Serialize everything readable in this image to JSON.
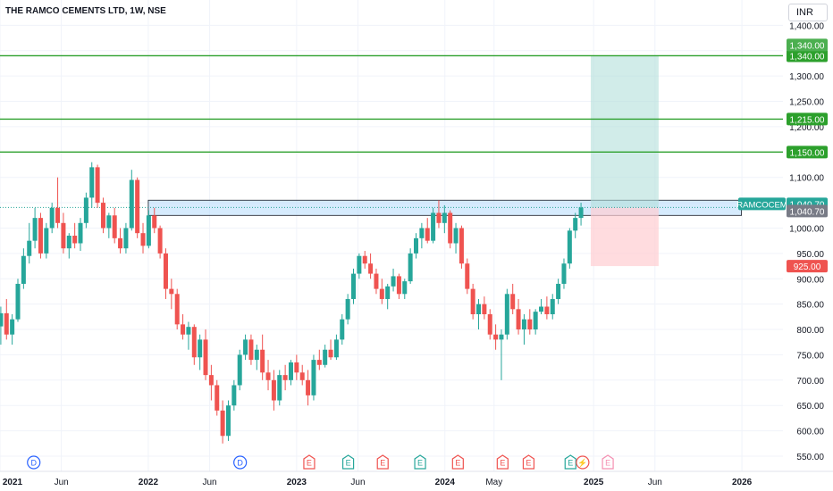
{
  "header": {
    "title": "THE RAMCO CEMENTS LTD, 1W, NSE",
    "currency": "INR"
  },
  "colors": {
    "up": "#26a69a",
    "down": "#ef5350",
    "level": "#2ca02c",
    "zone": "#bbdefb",
    "target": "#b2dfdb",
    "stop": "#ffcdd2"
  },
  "chart_data": {
    "type": "candlestick",
    "symbol": "RAMCOCEM",
    "interval": "1W",
    "x_range": [
      "2021-01-01",
      "2026-04-12"
    ],
    "x_ticks": [
      {
        "date": "2021-01-01",
        "label": "2021",
        "bold": true
      },
      {
        "date": "2021-06-01",
        "label": "Jun",
        "bold": false
      },
      {
        "date": "2022-01-01",
        "label": "2022",
        "bold": true
      },
      {
        "date": "2022-06-01",
        "label": "Jun",
        "bold": false
      },
      {
        "date": "2023-01-01",
        "label": "2023",
        "bold": true
      },
      {
        "date": "2023-06-01",
        "label": "Jun",
        "bold": false
      },
      {
        "date": "2024-01-01",
        "label": "2024",
        "bold": true
      },
      {
        "date": "2024-05-01",
        "label": "May",
        "bold": false
      },
      {
        "date": "2025-01-01",
        "label": "2025",
        "bold": true
      },
      {
        "date": "2025-06-01",
        "label": "Jun",
        "bold": false
      },
      {
        "date": "2026-01-01",
        "label": "2026",
        "bold": true
      }
    ],
    "y_range": [
      520,
      1450
    ],
    "y_ticks": [
      {
        "value": 550,
        "label": "550.00"
      },
      {
        "value": 600,
        "label": "600.00"
      },
      {
        "value": 650,
        "label": "650.00"
      },
      {
        "value": 700,
        "label": "700.00"
      },
      {
        "value": 750,
        "label": "750.00"
      },
      {
        "value": 800,
        "label": "800.00"
      },
      {
        "value": 850,
        "label": "850.00"
      },
      {
        "value": 900,
        "label": "900.00"
      },
      {
        "value": 950,
        "label": "950.00"
      },
      {
        "value": 1000,
        "label": "1,000.00"
      },
      {
        "value": 1050,
        "label": "1,050.00"
      },
      {
        "value": 1100,
        "label": "1,100.00"
      },
      {
        "value": 1150,
        "label": "1,150.00"
      },
      {
        "value": 1200,
        "label": "1,200.00"
      },
      {
        "value": 1250,
        "label": "1,250.00"
      },
      {
        "value": 1300,
        "label": "1,300.00"
      },
      {
        "value": 1350,
        "label": "1,350.00"
      },
      {
        "value": 1400,
        "label": "1,400.00"
      }
    ],
    "last_price": 1040.7,
    "last_price_label": "1,040.70",
    "price_tag": "RAMCOCEM",
    "horizontal_levels": [
      {
        "value": 1340,
        "label": "1,340.00"
      },
      {
        "value": 1215,
        "label": "1,215.00"
      },
      {
        "value": 1150,
        "label": "1,150.00"
      }
    ],
    "resistance_zone": {
      "from": "2022-01-01",
      "to": "2025-12-31",
      "top": 1055,
      "bottom": 1025
    },
    "position": {
      "from": "2024-12-25",
      "to": "2025-06-10",
      "entry": 1040.7,
      "target": 1340,
      "stop": 925,
      "target_label": "1,340.00",
      "stop_label": "925.00"
    },
    "event_markers": [
      {
        "date": "2021-03-25",
        "kind": "D",
        "label": "D"
      },
      {
        "date": "2022-08-15",
        "kind": "D",
        "label": "D"
      },
      {
        "date": "2023-02-01",
        "kind": "E",
        "label": "E"
      },
      {
        "date": "2023-05-08",
        "kind": "E",
        "label": "E"
      },
      {
        "date": "2023-08-01",
        "kind": "E",
        "label": "E"
      },
      {
        "date": "2023-11-01",
        "kind": "E",
        "label": "E"
      },
      {
        "date": "2024-02-02",
        "kind": "E",
        "label": "E"
      },
      {
        "date": "2024-05-22",
        "kind": "E",
        "label": "E"
      },
      {
        "date": "2024-07-25",
        "kind": "E",
        "label": "E"
      },
      {
        "date": "2024-11-05",
        "kind": "E",
        "label": "E"
      },
      {
        "date": "2024-12-05",
        "kind": "F",
        "label": "⚡"
      },
      {
        "date": "2025-02-05",
        "kind": "E_future",
        "label": "E"
      }
    ],
    "candles": [
      {
        "t": "2021-01-03",
        "o": 806,
        "h": 845,
        "l": 770,
        "c": 832
      },
      {
        "t": "2021-01-17",
        "o": 832,
        "h": 860,
        "l": 780,
        "c": 790
      },
      {
        "t": "2021-01-31",
        "o": 790,
        "h": 830,
        "l": 770,
        "c": 820
      },
      {
        "t": "2021-02-14",
        "o": 820,
        "h": 900,
        "l": 815,
        "c": 890
      },
      {
        "t": "2021-02-28",
        "o": 890,
        "h": 960,
        "l": 880,
        "c": 945
      },
      {
        "t": "2021-03-14",
        "o": 945,
        "h": 1010,
        "l": 930,
        "c": 975
      },
      {
        "t": "2021-03-28",
        "o": 975,
        "h": 1040,
        "l": 960,
        "c": 1020
      },
      {
        "t": "2021-04-11",
        "o": 1020,
        "h": 1030,
        "l": 940,
        "c": 950
      },
      {
        "t": "2021-04-25",
        "o": 950,
        "h": 1010,
        "l": 940,
        "c": 1000
      },
      {
        "t": "2021-05-09",
        "o": 1000,
        "h": 1050,
        "l": 990,
        "c": 1040
      },
      {
        "t": "2021-05-23",
        "o": 1040,
        "h": 1100,
        "l": 1000,
        "c": 1010
      },
      {
        "t": "2021-06-06",
        "o": 1010,
        "h": 1030,
        "l": 950,
        "c": 960
      },
      {
        "t": "2021-06-20",
        "o": 960,
        "h": 990,
        "l": 940,
        "c": 985
      },
      {
        "t": "2021-07-04",
        "o": 985,
        "h": 1010,
        "l": 960,
        "c": 970
      },
      {
        "t": "2021-07-18",
        "o": 970,
        "h": 1020,
        "l": 955,
        "c": 1010
      },
      {
        "t": "2021-08-01",
        "o": 1010,
        "h": 1070,
        "l": 1000,
        "c": 1060
      },
      {
        "t": "2021-08-15",
        "o": 1060,
        "h": 1130,
        "l": 1040,
        "c": 1120
      },
      {
        "t": "2021-08-29",
        "o": 1120,
        "h": 1125,
        "l": 1040,
        "c": 1050
      },
      {
        "t": "2021-09-12",
        "o": 1050,
        "h": 1060,
        "l": 990,
        "c": 1000
      },
      {
        "t": "2021-09-26",
        "o": 1000,
        "h": 1030,
        "l": 980,
        "c": 1025
      },
      {
        "t": "2021-10-10",
        "o": 1025,
        "h": 1040,
        "l": 970,
        "c": 980
      },
      {
        "t": "2021-10-24",
        "o": 980,
        "h": 1000,
        "l": 950,
        "c": 960
      },
      {
        "t": "2021-11-07",
        "o": 960,
        "h": 1010,
        "l": 950,
        "c": 1000
      },
      {
        "t": "2021-11-21",
        "o": 1000,
        "h": 1115,
        "l": 995,
        "c": 1095
      },
      {
        "t": "2021-12-05",
        "o": 1095,
        "h": 1100,
        "l": 980,
        "c": 990
      },
      {
        "t": "2021-12-19",
        "o": 990,
        "h": 1010,
        "l": 950,
        "c": 965
      },
      {
        "t": "2022-01-02",
        "o": 965,
        "h": 1035,
        "l": 960,
        "c": 1025
      },
      {
        "t": "2022-01-16",
        "o": 1025,
        "h": 1040,
        "l": 990,
        "c": 1000
      },
      {
        "t": "2022-01-30",
        "o": 1000,
        "h": 1005,
        "l": 940,
        "c": 950
      },
      {
        "t": "2022-02-13",
        "o": 950,
        "h": 960,
        "l": 860,
        "c": 880
      },
      {
        "t": "2022-02-27",
        "o": 880,
        "h": 900,
        "l": 840,
        "c": 870
      },
      {
        "t": "2022-03-13",
        "o": 870,
        "h": 880,
        "l": 800,
        "c": 810
      },
      {
        "t": "2022-03-27",
        "o": 810,
        "h": 830,
        "l": 780,
        "c": 790
      },
      {
        "t": "2022-04-10",
        "o": 790,
        "h": 815,
        "l": 760,
        "c": 805
      },
      {
        "t": "2022-04-24",
        "o": 805,
        "h": 810,
        "l": 730,
        "c": 745
      },
      {
        "t": "2022-05-08",
        "o": 745,
        "h": 790,
        "l": 720,
        "c": 780
      },
      {
        "t": "2022-05-22",
        "o": 780,
        "h": 800,
        "l": 700,
        "c": 710
      },
      {
        "t": "2022-06-05",
        "o": 710,
        "h": 730,
        "l": 660,
        "c": 690
      },
      {
        "t": "2022-06-19",
        "o": 690,
        "h": 700,
        "l": 630,
        "c": 640
      },
      {
        "t": "2022-07-03",
        "o": 640,
        "h": 660,
        "l": 575,
        "c": 590
      },
      {
        "t": "2022-07-17",
        "o": 590,
        "h": 660,
        "l": 580,
        "c": 650
      },
      {
        "t": "2022-07-31",
        "o": 650,
        "h": 700,
        "l": 640,
        "c": 690
      },
      {
        "t": "2022-08-14",
        "o": 690,
        "h": 760,
        "l": 680,
        "c": 750
      },
      {
        "t": "2022-08-28",
        "o": 750,
        "h": 790,
        "l": 740,
        "c": 780
      },
      {
        "t": "2022-09-11",
        "o": 780,
        "h": 790,
        "l": 730,
        "c": 740
      },
      {
        "t": "2022-09-25",
        "o": 740,
        "h": 770,
        "l": 720,
        "c": 760
      },
      {
        "t": "2022-10-09",
        "o": 760,
        "h": 790,
        "l": 700,
        "c": 715
      },
      {
        "t": "2022-10-23",
        "o": 715,
        "h": 740,
        "l": 680,
        "c": 700
      },
      {
        "t": "2022-11-06",
        "o": 700,
        "h": 720,
        "l": 640,
        "c": 660
      },
      {
        "t": "2022-11-20",
        "o": 660,
        "h": 720,
        "l": 650,
        "c": 710
      },
      {
        "t": "2022-12-04",
        "o": 710,
        "h": 730,
        "l": 680,
        "c": 700
      },
      {
        "t": "2022-12-18",
        "o": 700,
        "h": 740,
        "l": 690,
        "c": 735
      },
      {
        "t": "2023-01-01",
        "o": 735,
        "h": 750,
        "l": 700,
        "c": 715
      },
      {
        "t": "2023-01-15",
        "o": 715,
        "h": 730,
        "l": 690,
        "c": 700
      },
      {
        "t": "2023-01-29",
        "o": 700,
        "h": 720,
        "l": 650,
        "c": 670
      },
      {
        "t": "2023-02-12",
        "o": 670,
        "h": 750,
        "l": 660,
        "c": 740
      },
      {
        "t": "2023-02-26",
        "o": 740,
        "h": 760,
        "l": 720,
        "c": 730
      },
      {
        "t": "2023-03-12",
        "o": 730,
        "h": 770,
        "l": 725,
        "c": 760
      },
      {
        "t": "2023-03-26",
        "o": 760,
        "h": 780,
        "l": 740,
        "c": 745
      },
      {
        "t": "2023-04-09",
        "o": 745,
        "h": 790,
        "l": 740,
        "c": 780
      },
      {
        "t": "2023-04-23",
        "o": 780,
        "h": 830,
        "l": 770,
        "c": 820
      },
      {
        "t": "2023-05-07",
        "o": 820,
        "h": 870,
        "l": 810,
        "c": 860
      },
      {
        "t": "2023-05-21",
        "o": 860,
        "h": 920,
        "l": 850,
        "c": 910
      },
      {
        "t": "2023-06-04",
        "o": 910,
        "h": 950,
        "l": 900,
        "c": 945
      },
      {
        "t": "2023-06-18",
        "o": 945,
        "h": 955,
        "l": 920,
        "c": 930
      },
      {
        "t": "2023-07-02",
        "o": 930,
        "h": 950,
        "l": 900,
        "c": 910
      },
      {
        "t": "2023-07-16",
        "o": 910,
        "h": 920,
        "l": 870,
        "c": 880
      },
      {
        "t": "2023-07-30",
        "o": 880,
        "h": 900,
        "l": 850,
        "c": 860
      },
      {
        "t": "2023-08-13",
        "o": 860,
        "h": 890,
        "l": 840,
        "c": 885
      },
      {
        "t": "2023-08-27",
        "o": 885,
        "h": 920,
        "l": 875,
        "c": 905
      },
      {
        "t": "2023-09-10",
        "o": 905,
        "h": 910,
        "l": 860,
        "c": 870
      },
      {
        "t": "2023-09-24",
        "o": 870,
        "h": 900,
        "l": 860,
        "c": 895
      },
      {
        "t": "2023-10-08",
        "o": 895,
        "h": 960,
        "l": 890,
        "c": 950
      },
      {
        "t": "2023-10-22",
        "o": 950,
        "h": 990,
        "l": 940,
        "c": 980
      },
      {
        "t": "2023-11-05",
        "o": 980,
        "h": 1010,
        "l": 960,
        "c": 1000
      },
      {
        "t": "2023-11-19",
        "o": 1000,
        "h": 1020,
        "l": 970,
        "c": 975
      },
      {
        "t": "2023-12-03",
        "o": 975,
        "h": 1040,
        "l": 970,
        "c": 1030
      },
      {
        "t": "2023-12-17",
        "o": 1030,
        "h": 1055,
        "l": 1000,
        "c": 1010
      },
      {
        "t": "2023-12-31",
        "o": 1010,
        "h": 1045,
        "l": 990,
        "c": 1030
      },
      {
        "t": "2024-01-14",
        "o": 1030,
        "h": 1035,
        "l": 960,
        "c": 970
      },
      {
        "t": "2024-01-28",
        "o": 970,
        "h": 1010,
        "l": 950,
        "c": 1000
      },
      {
        "t": "2024-02-11",
        "o": 1000,
        "h": 1005,
        "l": 920,
        "c": 930
      },
      {
        "t": "2024-02-25",
        "o": 930,
        "h": 940,
        "l": 870,
        "c": 880
      },
      {
        "t": "2024-03-10",
        "o": 880,
        "h": 890,
        "l": 820,
        "c": 830
      },
      {
        "t": "2024-03-24",
        "o": 830,
        "h": 860,
        "l": 800,
        "c": 850
      },
      {
        "t": "2024-04-07",
        "o": 850,
        "h": 865,
        "l": 820,
        "c": 830
      },
      {
        "t": "2024-04-21",
        "o": 830,
        "h": 840,
        "l": 780,
        "c": 790
      },
      {
        "t": "2024-05-05",
        "o": 790,
        "h": 810,
        "l": 760,
        "c": 780
      },
      {
        "t": "2024-05-19",
        "o": 780,
        "h": 800,
        "l": 700,
        "c": 790
      },
      {
        "t": "2024-06-02",
        "o": 790,
        "h": 880,
        "l": 780,
        "c": 870
      },
      {
        "t": "2024-06-16",
        "o": 870,
        "h": 890,
        "l": 830,
        "c": 840
      },
      {
        "t": "2024-06-30",
        "o": 840,
        "h": 860,
        "l": 790,
        "c": 800
      },
      {
        "t": "2024-07-14",
        "o": 800,
        "h": 830,
        "l": 770,
        "c": 820
      },
      {
        "t": "2024-07-28",
        "o": 820,
        "h": 840,
        "l": 790,
        "c": 800
      },
      {
        "t": "2024-08-11",
        "o": 800,
        "h": 840,
        "l": 790,
        "c": 835
      },
      {
        "t": "2024-08-25",
        "o": 835,
        "h": 860,
        "l": 830,
        "c": 845
      },
      {
        "t": "2024-09-08",
        "o": 845,
        "h": 865,
        "l": 820,
        "c": 830
      },
      {
        "t": "2024-09-22",
        "o": 830,
        "h": 870,
        "l": 820,
        "c": 860
      },
      {
        "t": "2024-10-06",
        "o": 860,
        "h": 900,
        "l": 850,
        "c": 890
      },
      {
        "t": "2024-10-20",
        "o": 890,
        "h": 940,
        "l": 880,
        "c": 930
      },
      {
        "t": "2024-11-03",
        "o": 930,
        "h": 1000,
        "l": 920,
        "c": 995
      },
      {
        "t": "2024-11-17",
        "o": 995,
        "h": 1030,
        "l": 980,
        "c": 1020
      },
      {
        "t": "2024-12-01",
        "o": 1020,
        "h": 1050,
        "l": 1005,
        "c": 1040.7
      }
    ]
  }
}
